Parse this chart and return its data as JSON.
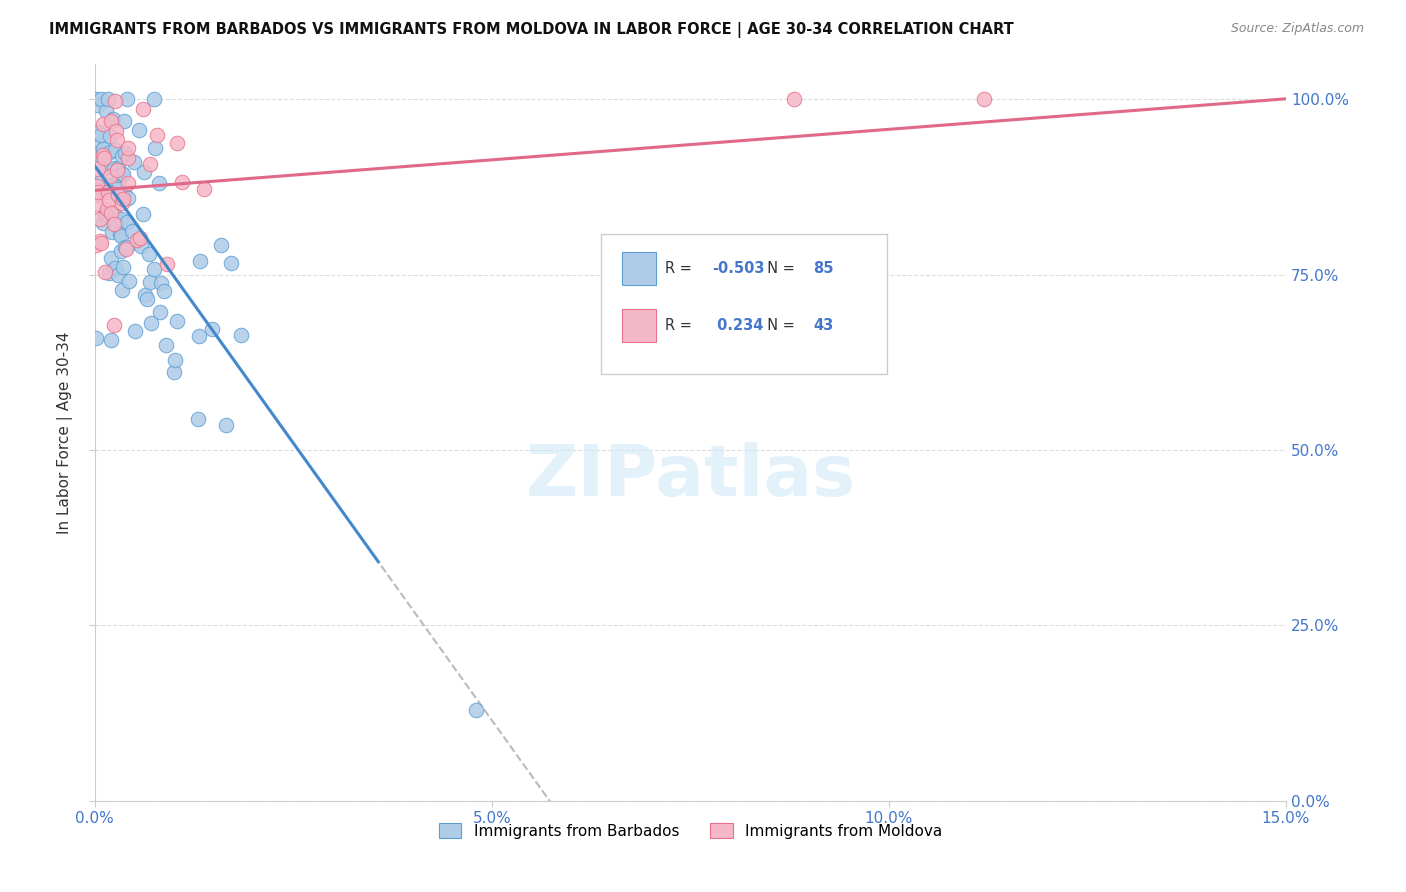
{
  "title": "IMMIGRANTS FROM BARBADOS VS IMMIGRANTS FROM MOLDOVA IN LABOR FORCE | AGE 30-34 CORRELATION CHART",
  "source": "Source: ZipAtlas.com",
  "ylabel": "In Labor Force | Age 30-34",
  "xlim": [
    0.0,
    15.0
  ],
  "ylim": [
    0.0,
    105.0
  ],
  "xtick_vals": [
    0,
    5,
    10,
    15
  ],
  "ytick_vals": [
    0,
    25,
    50,
    75,
    100
  ],
  "barbados_R": -0.503,
  "barbados_N": 85,
  "moldova_R": 0.234,
  "moldova_N": 43,
  "barbados_color": "#aecce8",
  "moldova_color": "#f5b8c8",
  "barbados_edge_color": "#5a9fd4",
  "moldova_edge_color": "#e8708a",
  "barbados_line_color": "#4488cc",
  "moldova_line_color": "#e06888",
  "dashed_line_color": "#bbbbbb",
  "watermark_color": "#d0e8f8",
  "grid_color": "#dddddd",
  "tick_label_color": "#4477cc",
  "title_color": "#111111",
  "source_color": "#888888",
  "ylabel_color": "#333333",
  "legend_edge_color": "#cccccc",
  "legend_R_color": "#333333",
  "legend_N_color": "#4477cc",
  "barbados_line_intercept": 90.5,
  "barbados_line_slope": -15.8,
  "moldova_line_intercept": 87.0,
  "moldova_line_slope": 0.87,
  "barbados_solid_x_end": 3.6,
  "moldova_solid_x_end": 15.0,
  "dashed_x_start": 3.6,
  "dashed_x_end": 15.0
}
